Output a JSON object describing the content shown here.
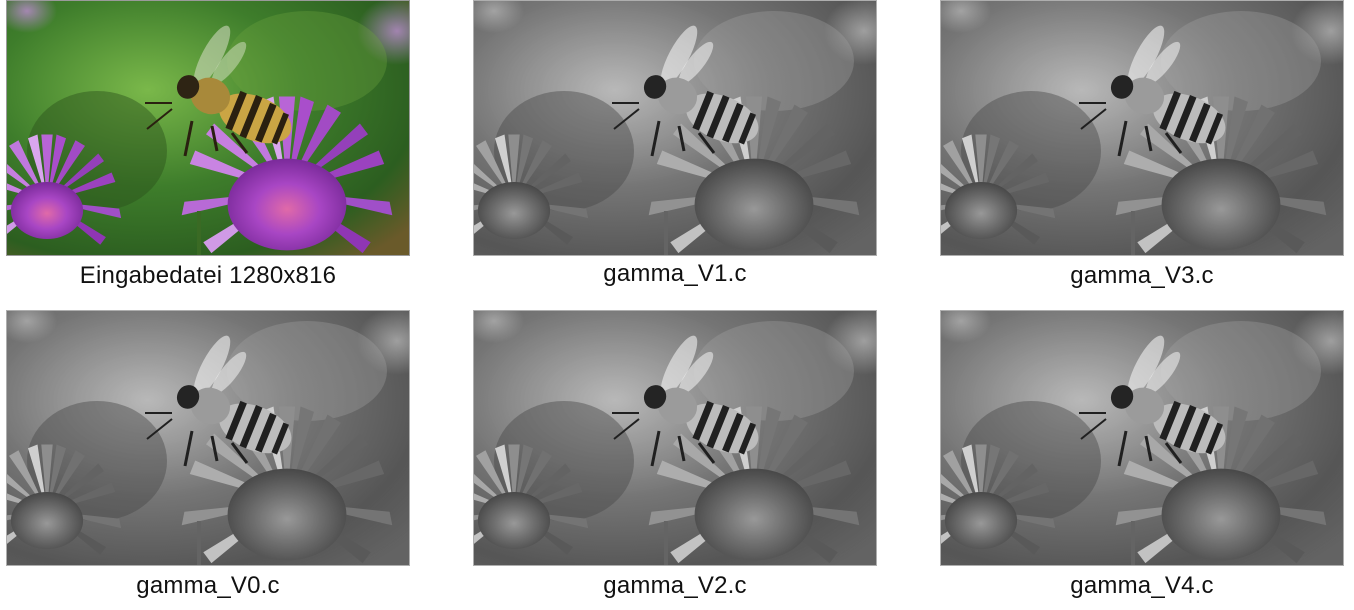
{
  "figures": [
    {
      "caption": "Eingabedatei 1280x816",
      "mode": "color"
    },
    {
      "caption": "gamma_V1.c",
      "mode": "grayscale"
    },
    {
      "caption": "gamma_V3.c",
      "mode": "grayscale"
    },
    {
      "caption": "gamma_V0.c",
      "mode": "grayscale"
    },
    {
      "caption": "gamma_V2.c",
      "mode": "grayscale"
    },
    {
      "caption": "gamma_V4.c",
      "mode": "grayscale"
    }
  ],
  "colors": {
    "background_green": "#3f7a2c",
    "flower_purple": "#a146c2",
    "bee_yellow": "#c9a43a"
  }
}
